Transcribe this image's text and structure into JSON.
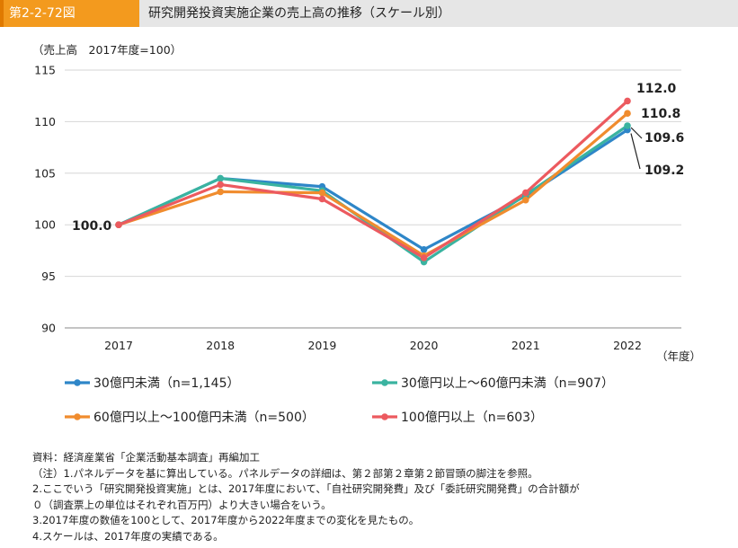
{
  "header": {
    "figure_number": "第2-2-72図",
    "title": "研究開発投資実施企業の売上高の推移（スケール別）"
  },
  "chart_data": {
    "type": "line",
    "title": "",
    "ylabel": "（売上高　2017年度=100）",
    "xlabel": "（年度）",
    "x": [
      "2017",
      "2018",
      "2019",
      "2020",
      "2021",
      "2022"
    ],
    "ylim": [
      90,
      115
    ],
    "yticks": [
      "90",
      "95",
      "100",
      "105",
      "110",
      "115"
    ],
    "grid": "horizontal",
    "legend_position": "bottom",
    "series": [
      {
        "name": "30億円未満（n=1,145）",
        "color": "#2e86c8",
        "values": [
          100.0,
          104.5,
          103.7,
          97.6,
          102.8,
          109.2
        ]
      },
      {
        "name": "30億円以上～60億円未満（n=907）",
        "color": "#3ab3a0",
        "values": [
          100.0,
          104.5,
          103.3,
          96.4,
          102.9,
          109.6
        ]
      },
      {
        "name": "60億円以上～100億円未満（n=500）",
        "color": "#f08c2e",
        "values": [
          100.0,
          103.2,
          103.1,
          97.0,
          102.4,
          110.8
        ]
      },
      {
        "name": "100億円以上（n=603）",
        "color": "#ec5a5f",
        "values": [
          100.0,
          103.9,
          102.5,
          96.8,
          103.1,
          112.0
        ]
      }
    ],
    "annotations": [
      "100.0",
      "112.0",
      "110.8",
      "109.6",
      "109.2"
    ]
  },
  "notes": [
    "資料：経済産業省「企業活動基本調査」再編加工",
    "（注）1.パネルデータを基に算出している。パネルデータの詳細は、第２部第２章第２節冒頭の脚注を参照。",
    "2.ここでいう「研究開発投資実施」とは、2017年度において、「自社研究開発費」及び「委託研究開発費」の合計額が",
    "０（調査票上の単位はそれぞれ百万円）より大きい場合をいう。",
    "3.2017年度の数値を100として、2017年度から2022年度までの変化を見たもの。",
    "4.スケールは、2017年度の実績である。"
  ]
}
